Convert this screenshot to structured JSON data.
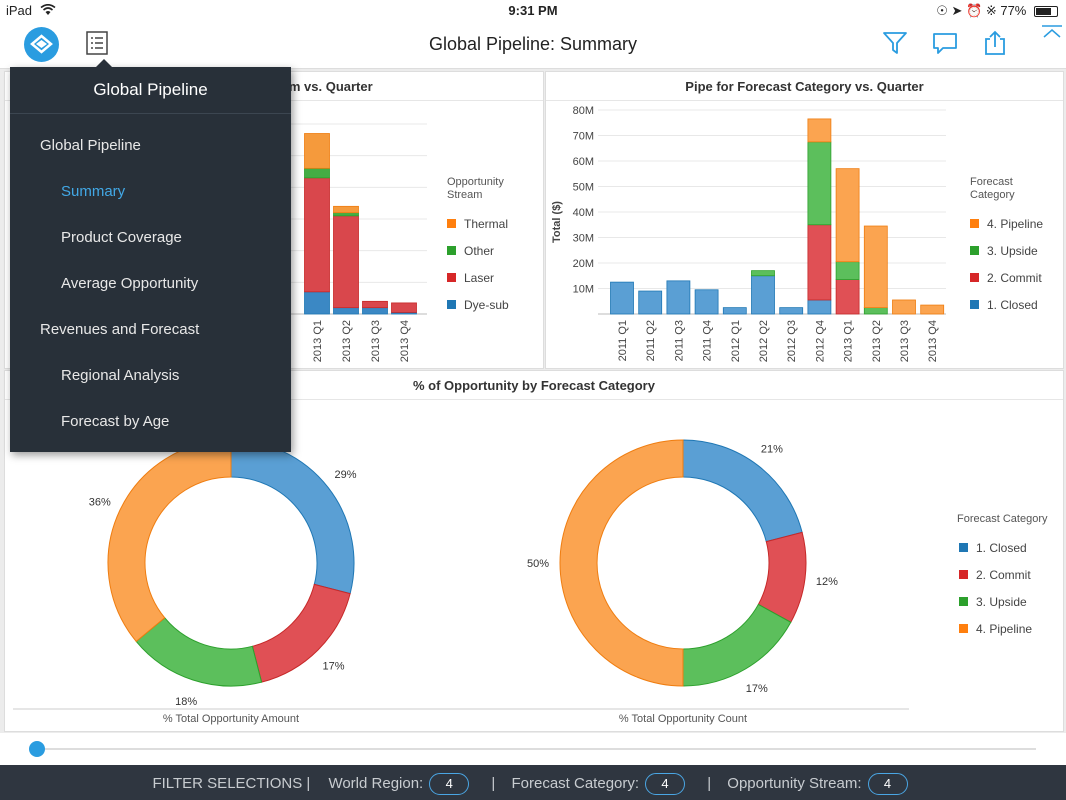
{
  "status": {
    "device": "iPad",
    "time": "9:31 PM",
    "battery": "77%"
  },
  "nav": {
    "title": "Global Pipeline: Summary"
  },
  "menu": {
    "header": "Global Pipeline",
    "items": [
      {
        "label": "Global Pipeline",
        "level": 0,
        "selected": false
      },
      {
        "label": "Summary",
        "level": 1,
        "selected": true
      },
      {
        "label": "Product Coverage",
        "level": 1,
        "selected": false
      },
      {
        "label": "Average Opportunity",
        "level": 1,
        "selected": false
      },
      {
        "label": "Revenues and Forecast",
        "level": 0,
        "selected": false
      },
      {
        "label": "Regional Analysis",
        "level": 1,
        "selected": false
      },
      {
        "label": "Forecast by Age",
        "level": 1,
        "selected": false
      }
    ]
  },
  "colors": {
    "accent": "#2a9ce0",
    "closed": "#1f77b4",
    "commit": "#d62728",
    "upside": "#2ca02c",
    "pipeline": "#ff7f0e"
  },
  "chart_data": [
    {
      "type": "bar",
      "stacked": true,
      "title": "Pipe for Opportunity Stream vs. Quarter",
      "visible_title": "tream vs. Quarter",
      "categories": [
        "2013 Q1",
        "2013 Q2",
        "2013 Q3",
        "2013 Q4"
      ],
      "legend_title": "Opportunity Stream",
      "legend": [
        {
          "label": "Thermal",
          "color": "#ff7f0e"
        },
        {
          "label": "Other",
          "color": "#2ca02c"
        },
        {
          "label": "Laser",
          "color": "#d62728"
        },
        {
          "label": "Dye-sub",
          "color": "#1f77b4"
        }
      ],
      "series": [
        {
          "name": "Dye-sub",
          "values": [
            7,
            2,
            2,
            0.5
          ]
        },
        {
          "name": "Laser",
          "values": [
            36,
            29,
            2,
            3
          ]
        },
        {
          "name": "Other",
          "values": [
            3,
            1,
            0,
            0
          ]
        },
        {
          "name": "Thermal",
          "values": [
            11,
            2,
            0,
            0
          ]
        }
      ]
    },
    {
      "type": "bar",
      "stacked": true,
      "title": "Pipe for Forecast Category vs. Quarter",
      "ylabel": "Total ($)",
      "yticks": [
        "10M",
        "20M",
        "30M",
        "40M",
        "50M",
        "60M",
        "70M",
        "80M"
      ],
      "ylim": [
        0,
        80
      ],
      "categories": [
        "2011 Q1",
        "2011 Q2",
        "2011 Q3",
        "2011 Q4",
        "2012 Q1",
        "2012 Q2",
        "2012 Q3",
        "2012 Q4",
        "2013 Q1",
        "2013 Q2",
        "2013 Q3",
        "2013 Q4"
      ],
      "legend_title": "Forecast Category",
      "legend": [
        {
          "label": "4. Pipeline",
          "color": "#ff7f0e"
        },
        {
          "label": "3. Upside",
          "color": "#2ca02c"
        },
        {
          "label": "2. Commit",
          "color": "#d62728"
        },
        {
          "label": "1. Closed",
          "color": "#1f77b4"
        }
      ],
      "series": [
        {
          "name": "1. Closed",
          "values": [
            12.5,
            9,
            13,
            9.5,
            2.5,
            15,
            2.5,
            5.5,
            0,
            0,
            0,
            0
          ]
        },
        {
          "name": "2. Commit",
          "values": [
            0,
            0,
            0,
            0,
            0,
            0,
            0,
            29.5,
            13.5,
            0,
            0,
            0
          ]
        },
        {
          "name": "3. Upside",
          "values": [
            0,
            0,
            0,
            0,
            0,
            2,
            0,
            32.5,
            7,
            2.5,
            0,
            0
          ]
        },
        {
          "name": "4. Pipeline",
          "values": [
            0,
            0,
            0,
            0,
            0,
            0,
            0,
            9,
            36.5,
            32,
            5.5,
            3.5
          ]
        }
      ]
    },
    {
      "type": "pie",
      "donut": true,
      "title": "% of Opportunity by Forecast Category",
      "caption": "% Total Opportunity Amount",
      "slices": [
        {
          "label": "1. Closed",
          "value": 29,
          "text": "29%"
        },
        {
          "label": "2. Commit",
          "value": 17,
          "text": "17%"
        },
        {
          "label": "3. Upside",
          "value": 18,
          "text": "18%"
        },
        {
          "label": "4. Pipeline",
          "value": 36,
          "text": "36%"
        }
      ]
    },
    {
      "type": "pie",
      "donut": true,
      "caption": "% Total Opportunity Count",
      "legend_title": "Forecast Category",
      "legend": [
        {
          "label": "1. Closed",
          "color": "#1f77b4"
        },
        {
          "label": "2. Commit",
          "color": "#d62728"
        },
        {
          "label": "3. Upside",
          "color": "#2ca02c"
        },
        {
          "label": "4. Pipeline",
          "color": "#ff7f0e"
        }
      ],
      "slices": [
        {
          "label": "1. Closed",
          "value": 21,
          "text": "21%"
        },
        {
          "label": "2. Commit",
          "value": 12,
          "text": "12%"
        },
        {
          "label": "3. Upside",
          "value": 17,
          "text": "17%"
        },
        {
          "label": "4. Pipeline",
          "value": 50,
          "text": "50%"
        }
      ]
    }
  ],
  "slider": {
    "value": 0
  },
  "filters": {
    "heading": "FILTER SELECTIONS |",
    "items": [
      {
        "label": "World Region:",
        "count": "4"
      },
      {
        "label": "Forecast Category:",
        "count": "4"
      },
      {
        "label": "Opportunity Stream:",
        "count": "4"
      }
    ],
    "separator": "|"
  }
}
